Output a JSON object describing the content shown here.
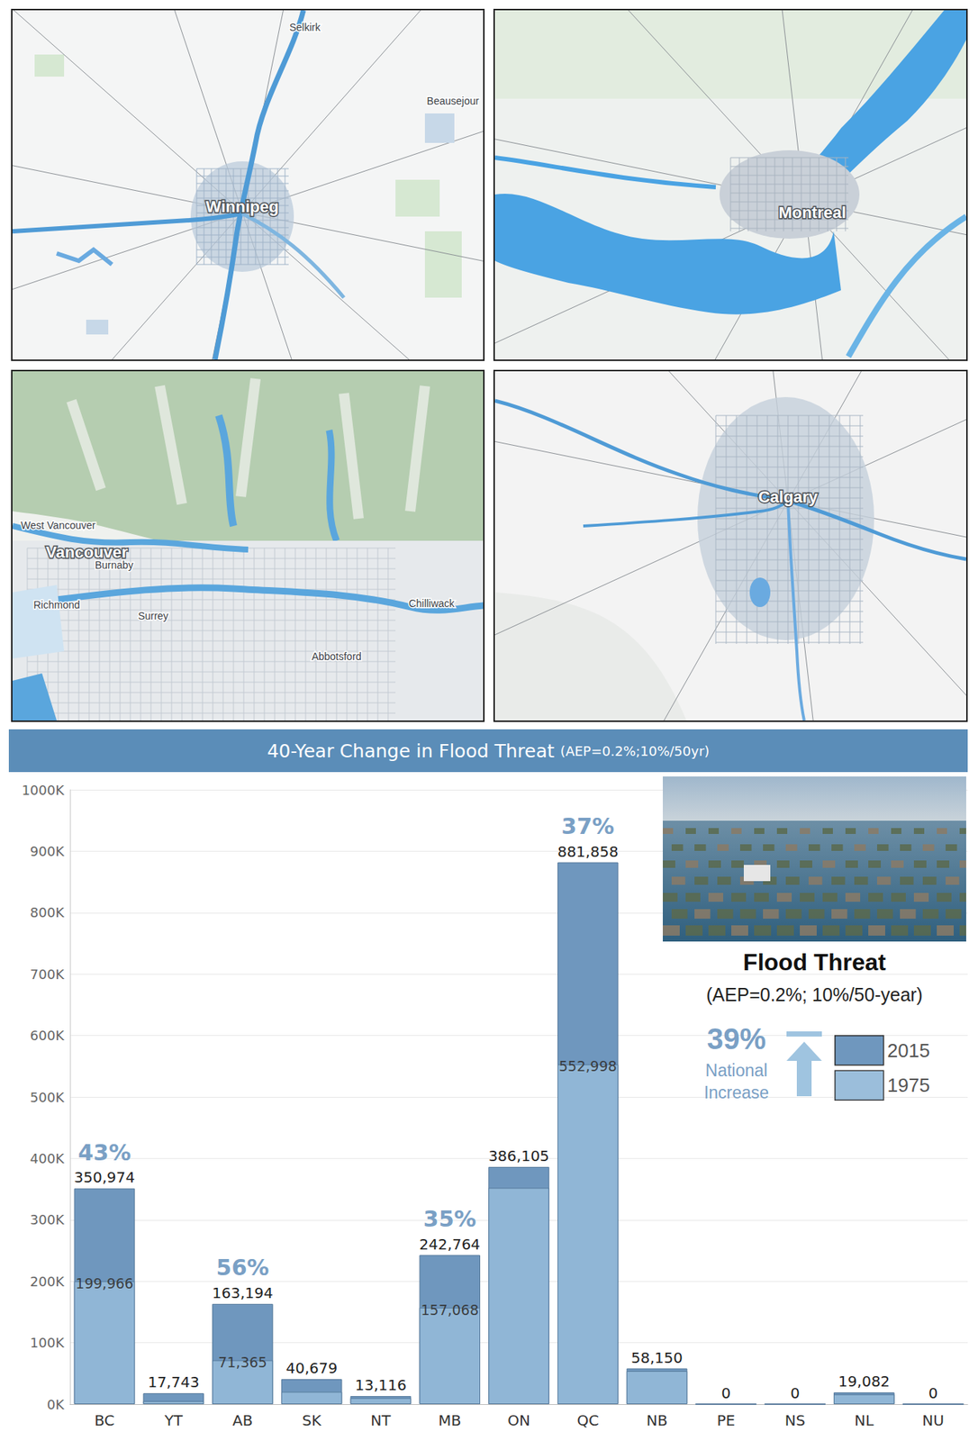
{
  "maps": [
    {
      "city": "Winnipeg",
      "places": [
        "Selkirk",
        "Beausejour"
      ]
    },
    {
      "city": "Montreal",
      "places": []
    },
    {
      "city": "Vancouver",
      "places": [
        "West Vancouver",
        "Burnaby",
        "Richmond",
        "Surrey",
        "Chilliwack",
        "Abbotsford"
      ]
    },
    {
      "city": "Calgary",
      "places": []
    }
  ],
  "chart_data": {
    "type": "bar",
    "title": "40-Year Change in Flood Threat",
    "subtitle": "(AEP=0.2%;10%/50yr)",
    "categories": [
      "BC",
      "YT",
      "AB",
      "SK",
      "NT",
      "MB",
      "ON",
      "QC",
      "NB",
      "PE",
      "NS",
      "NL",
      "NU"
    ],
    "series": [
      {
        "name": "2015",
        "color": "#6f97be",
        "values": [
          350974,
          17743,
          163194,
          40679,
          13116,
          242764,
          386105,
          881858,
          58150,
          0,
          0,
          19082,
          0
        ],
        "value_labels": [
          "350,974",
          "17,743",
          "163,194",
          "40,679",
          "13,116",
          "242,764",
          "386,105",
          "881,858",
          "58,150",
          "0",
          "0",
          "19,082",
          "0"
        ]
      },
      {
        "name": "1975",
        "color": "#92b8d8",
        "values": [
          199966,
          5000,
          71365,
          20000,
          10000,
          157068,
          352000,
          552998,
          54000,
          0,
          0,
          16000,
          0
        ],
        "value_labels": [
          "199,966",
          null,
          "71,365",
          null,
          null,
          "157,068",
          null,
          "552,998",
          null,
          null,
          null,
          null,
          null
        ]
      }
    ],
    "growth": {
      "values": [
        43,
        null,
        56,
        null,
        null,
        35,
        null,
        37,
        null,
        null,
        null,
        null,
        null
      ],
      "labels": [
        "43%",
        null,
        "56%",
        null,
        null,
        "35%",
        null,
        "37%",
        null,
        null,
        null,
        null,
        null
      ]
    },
    "inset": {
      "title": "Flood Threat",
      "subtitle": "(AEP=0.2%; 10%/50-year)",
      "national_increase": {
        "value": 39,
        "label": "39%",
        "text": "National Increase"
      }
    },
    "ylim": [
      0,
      1000000
    ],
    "yticks": [
      {
        "value": 0,
        "label": "0K"
      },
      {
        "value": 100000,
        "label": "100K"
      },
      {
        "value": 200000,
        "label": "200K"
      },
      {
        "value": 300000,
        "label": "300K"
      },
      {
        "value": 400000,
        "label": "400K"
      },
      {
        "value": 500000,
        "label": "500K"
      },
      {
        "value": 600000,
        "label": "600K"
      },
      {
        "value": 700000,
        "label": "700K"
      },
      {
        "value": 800000,
        "label": "800K"
      },
      {
        "value": 900000,
        "label": "900K"
      },
      {
        "value": 1000000,
        "label": "1000K"
      }
    ],
    "grid": true,
    "legend": "right",
    "data_labels": true
  }
}
